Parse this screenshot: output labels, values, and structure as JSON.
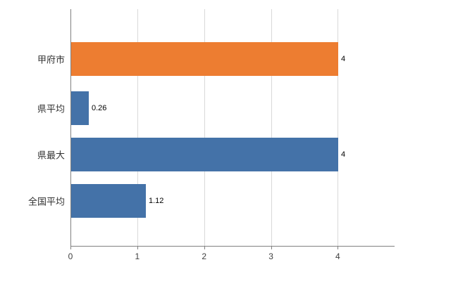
{
  "chart_data": {
    "type": "bar",
    "orientation": "horizontal",
    "title": "",
    "categories": [
      "甲府市",
      "県平均",
      "県最大",
      "全国平均"
    ],
    "values": [
      4,
      0.26,
      4,
      1.12
    ],
    "value_labels": [
      "4",
      "0.26",
      "4",
      "1.12"
    ],
    "bar_colors": [
      "#ED7D31",
      "#4472A8",
      "#4472A8",
      "#4472A8"
    ],
    "x_ticks": [
      "0",
      "1",
      "2",
      "3",
      "4"
    ],
    "x_tick_values": [
      0,
      1,
      2,
      3,
      4
    ],
    "xlim": [
      0,
      4.85
    ],
    "xlabel": "",
    "ylabel": "",
    "grid": "vertical",
    "gridline_color": "#D9D9D9",
    "axis_color": "#808080",
    "data_label_color": "#000000",
    "text_color": "#333333",
    "background_color": "#FFFFFF",
    "legend_position": "none"
  }
}
